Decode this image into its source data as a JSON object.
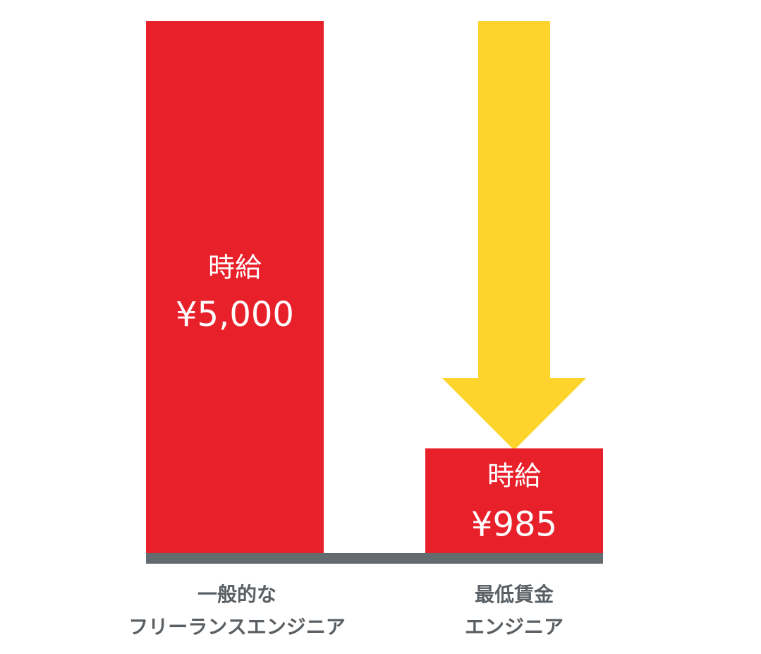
{
  "chart_data": {
    "type": "bar",
    "categories": [
      [
        "一般的な",
        "フリーランスエンジニア"
      ],
      [
        "最低賃金",
        "エンジニア"
      ]
    ],
    "values": [
      5000,
      985
    ],
    "bar_label": "時給",
    "value_labels": [
      "¥5,000",
      "¥985"
    ],
    "ylim": [
      0,
      5000
    ],
    "grid": false,
    "annotation": "down-arrow-from-first-to-second",
    "colors": {
      "bar": "#e8202a",
      "arrow": "#fdd42c",
      "baseline": "#646b6e",
      "bar_text": "#ffffff",
      "category_text": "#5a5f63"
    }
  }
}
